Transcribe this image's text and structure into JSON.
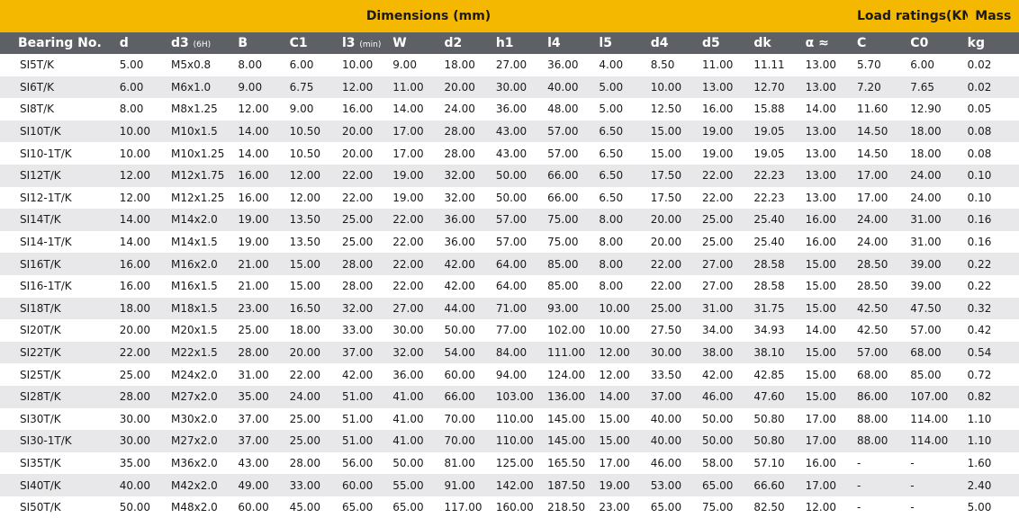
{
  "header": {
    "dimensions_label": "Dimensions (mm)",
    "load_ratings_label": "Load ratings(KN)",
    "mass_label": "Mass"
  },
  "columns": [
    "Bearing No.",
    "d",
    "d3",
    "B",
    "C1",
    "l3",
    "W",
    "d2",
    "h1",
    "l4",
    "l5",
    "d4",
    "d5",
    "dk",
    "α ≈",
    "C",
    "C0",
    "kg"
  ],
  "column_subscripts": {
    "d3": "(6H)",
    "l3": "(min)"
  },
  "rows": [
    [
      "SI5T/K",
      "5.00",
      "M5x0.8",
      "8.00",
      "6.00",
      "10.00",
      "9.00",
      "18.00",
      "27.00",
      "36.00",
      "4.00",
      "8.50",
      "11.00",
      "11.11",
      "13.00",
      "5.70",
      "6.00",
      "0.02"
    ],
    [
      "SI6T/K",
      "6.00",
      "M6x1.0",
      "9.00",
      "6.75",
      "12.00",
      "11.00",
      "20.00",
      "30.00",
      "40.00",
      "5.00",
      "10.00",
      "13.00",
      "12.70",
      "13.00",
      "7.20",
      "7.65",
      "0.02"
    ],
    [
      "SI8T/K",
      "8.00",
      "M8x1.25",
      "12.00",
      "9.00",
      "16.00",
      "14.00",
      "24.00",
      "36.00",
      "48.00",
      "5.00",
      "12.50",
      "16.00",
      "15.88",
      "14.00",
      "11.60",
      "12.90",
      "0.05"
    ],
    [
      "SI10T/K",
      "10.00",
      "M10x1.5",
      "14.00",
      "10.50",
      "20.00",
      "17.00",
      "28.00",
      "43.00",
      "57.00",
      "6.50",
      "15.00",
      "19.00",
      "19.05",
      "13.00",
      "14.50",
      "18.00",
      "0.08"
    ],
    [
      "SI10-1T/K",
      "10.00",
      "M10x1.25",
      "14.00",
      "10.50",
      "20.00",
      "17.00",
      "28.00",
      "43.00",
      "57.00",
      "6.50",
      "15.00",
      "19.00",
      "19.05",
      "13.00",
      "14.50",
      "18.00",
      "0.08"
    ],
    [
      "SI12T/K",
      "12.00",
      "M12x1.75",
      "16.00",
      "12.00",
      "22.00",
      "19.00",
      "32.00",
      "50.00",
      "66.00",
      "6.50",
      "17.50",
      "22.00",
      "22.23",
      "13.00",
      "17.00",
      "24.00",
      "0.10"
    ],
    [
      "SI12-1T/K",
      "12.00",
      "M12x1.25",
      "16.00",
      "12.00",
      "22.00",
      "19.00",
      "32.00",
      "50.00",
      "66.00",
      "6.50",
      "17.50",
      "22.00",
      "22.23",
      "13.00",
      "17.00",
      "24.00",
      "0.10"
    ],
    [
      "SI14T/K",
      "14.00",
      "M14x2.0",
      "19.00",
      "13.50",
      "25.00",
      "22.00",
      "36.00",
      "57.00",
      "75.00",
      "8.00",
      "20.00",
      "25.00",
      "25.40",
      "16.00",
      "24.00",
      "31.00",
      "0.16"
    ],
    [
      "SI14-1T/K",
      "14.00",
      "M14x1.5",
      "19.00",
      "13.50",
      "25.00",
      "22.00",
      "36.00",
      "57.00",
      "75.00",
      "8.00",
      "20.00",
      "25.00",
      "25.40",
      "16.00",
      "24.00",
      "31.00",
      "0.16"
    ],
    [
      "SI16T/K",
      "16.00",
      "M16x2.0",
      "21.00",
      "15.00",
      "28.00",
      "22.00",
      "42.00",
      "64.00",
      "85.00",
      "8.00",
      "22.00",
      "27.00",
      "28.58",
      "15.00",
      "28.50",
      "39.00",
      "0.22"
    ],
    [
      "SI16-1T/K",
      "16.00",
      "M16x1.5",
      "21.00",
      "15.00",
      "28.00",
      "22.00",
      "42.00",
      "64.00",
      "85.00",
      "8.00",
      "22.00",
      "27.00",
      "28.58",
      "15.00",
      "28.50",
      "39.00",
      "0.22"
    ],
    [
      "SI18T/K",
      "18.00",
      "M18x1.5",
      "23.00",
      "16.50",
      "32.00",
      "27.00",
      "44.00",
      "71.00",
      "93.00",
      "10.00",
      "25.00",
      "31.00",
      "31.75",
      "15.00",
      "42.50",
      "47.50",
      "0.32"
    ],
    [
      "SI20T/K",
      "20.00",
      "M20x1.5",
      "25.00",
      "18.00",
      "33.00",
      "30.00",
      "50.00",
      "77.00",
      "102.00",
      "10.00",
      "27.50",
      "34.00",
      "34.93",
      "14.00",
      "42.50",
      "57.00",
      "0.42"
    ],
    [
      "SI22T/K",
      "22.00",
      "M22x1.5",
      "28.00",
      "20.00",
      "37.00",
      "32.00",
      "54.00",
      "84.00",
      "111.00",
      "12.00",
      "30.00",
      "38.00",
      "38.10",
      "15.00",
      "57.00",
      "68.00",
      "0.54"
    ],
    [
      "SI25T/K",
      "25.00",
      "M24x2.0",
      "31.00",
      "22.00",
      "42.00",
      "36.00",
      "60.00",
      "94.00",
      "124.00",
      "12.00",
      "33.50",
      "42.00",
      "42.85",
      "15.00",
      "68.00",
      "85.00",
      "0.72"
    ],
    [
      "SI28T/K",
      "28.00",
      "M27x2.0",
      "35.00",
      "24.00",
      "51.00",
      "41.00",
      "66.00",
      "103.00",
      "136.00",
      "14.00",
      "37.00",
      "46.00",
      "47.60",
      "15.00",
      "86.00",
      "107.00",
      "0.82"
    ],
    [
      "SI30T/K",
      "30.00",
      "M30x2.0",
      "37.00",
      "25.00",
      "51.00",
      "41.00",
      "70.00",
      "110.00",
      "145.00",
      "15.00",
      "40.00",
      "50.00",
      "50.80",
      "17.00",
      "88.00",
      "114.00",
      "1.10"
    ],
    [
      "SI30-1T/K",
      "30.00",
      "M27x2.0",
      "37.00",
      "25.00",
      "51.00",
      "41.00",
      "70.00",
      "110.00",
      "145.00",
      "15.00",
      "40.00",
      "50.00",
      "50.80",
      "17.00",
      "88.00",
      "114.00",
      "1.10"
    ],
    [
      "SI35T/K",
      "35.00",
      "M36x2.0",
      "43.00",
      "28.00",
      "56.00",
      "50.00",
      "81.00",
      "125.00",
      "165.50",
      "17.00",
      "46.00",
      "58.00",
      "57.10",
      "16.00",
      "-",
      "-",
      "1.60"
    ],
    [
      "SI40T/K",
      "40.00",
      "M42x2.0",
      "49.00",
      "33.00",
      "60.00",
      "55.00",
      "91.00",
      "142.00",
      "187.50",
      "19.00",
      "53.00",
      "65.00",
      "66.60",
      "17.00",
      "-",
      "-",
      "2.40"
    ],
    [
      "SI50T/K",
      "50.00",
      "M48x2.0",
      "60.00",
      "45.00",
      "65.00",
      "65.00",
      "117.00",
      "160.00",
      "218.50",
      "23.00",
      "65.00",
      "75.00",
      "82.50",
      "12.00",
      "-",
      "-",
      "5.00"
    ]
  ],
  "colors": {
    "header_bar": "#f5b800",
    "column_header": "#5d6166",
    "stripe": "#e8e8ea"
  }
}
